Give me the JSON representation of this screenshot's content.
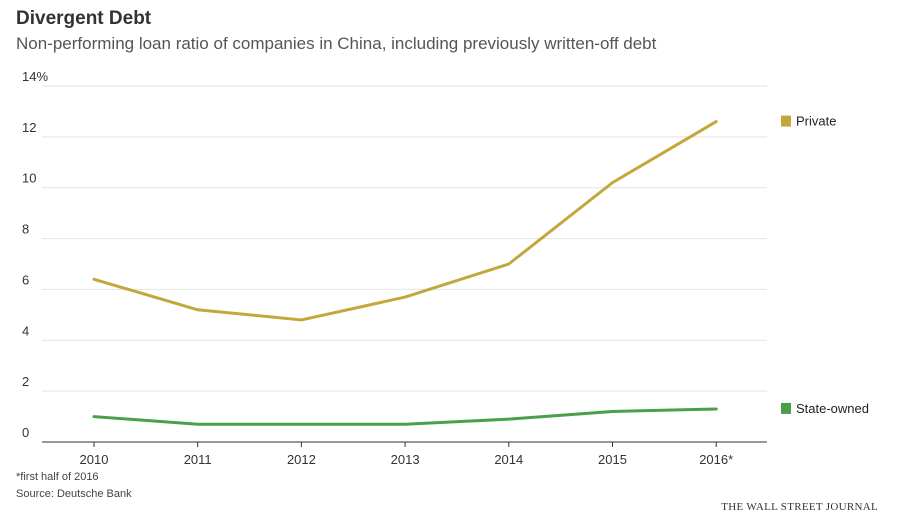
{
  "header": {
    "title": "Divergent Debt",
    "subtitle": "Non-performing loan ratio of companies in China, including previously written-off debt"
  },
  "footer": {
    "footnote": "*first half of 2016",
    "source": "Source: Deutsche Bank",
    "brand": "THE WALL STREET JOURNAL"
  },
  "colors": {
    "private": "#c4a73a",
    "state_owned": "#4aa04a",
    "grid": "#e3e3e3",
    "axis": "#333333"
  },
  "chart_data": {
    "type": "line",
    "title": "Divergent Debt",
    "subtitle": "Non-performing loan ratio of companies in China, including previously written-off debt",
    "xlabel": "",
    "ylabel": "",
    "categories": [
      "2010",
      "2011",
      "2012",
      "2013",
      "2014",
      "2015",
      "2016*"
    ],
    "ylim": [
      0,
      14
    ],
    "yticks": [
      "0",
      "2",
      "4",
      "6",
      "8",
      "10",
      "12",
      "14%"
    ],
    "grid": true,
    "legend_placement": "right, labels at line ends",
    "series": [
      {
        "name": "Private",
        "values": [
          6.4,
          5.2,
          4.8,
          5.7,
          7.0,
          10.2,
          12.6
        ]
      },
      {
        "name": "State-owned",
        "values": [
          1.0,
          0.7,
          0.7,
          0.7,
          0.9,
          1.2,
          1.3
        ]
      }
    ]
  }
}
